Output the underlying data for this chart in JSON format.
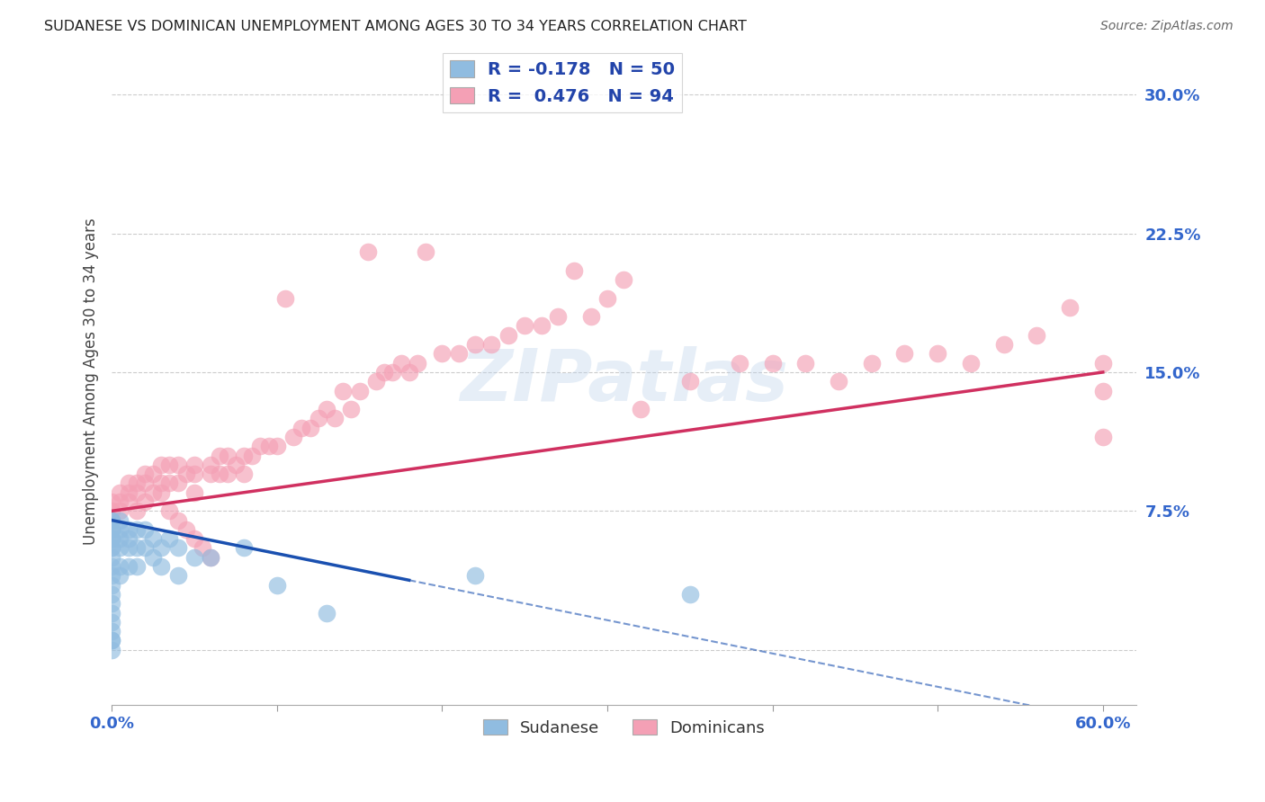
{
  "title": "SUDANESE VS DOMINICAN UNEMPLOYMENT AMONG AGES 30 TO 34 YEARS CORRELATION CHART",
  "source": "Source: ZipAtlas.com",
  "ylabel": "Unemployment Among Ages 30 to 34 years",
  "xlim": [
    0.0,
    0.62
  ],
  "ylim": [
    -0.03,
    0.32
  ],
  "xticks": [
    0.0,
    0.1,
    0.2,
    0.3,
    0.4,
    0.5,
    0.6
  ],
  "xticklabels": [
    "0.0%",
    "",
    "",
    "",
    "",
    "",
    "60.0%"
  ],
  "yticks": [
    0.0,
    0.075,
    0.15,
    0.225,
    0.3
  ],
  "yticklabels": [
    "",
    "7.5%",
    "15.0%",
    "22.5%",
    "30.0%"
  ],
  "grid_yticks": [
    0.0,
    0.075,
    0.15,
    0.225,
    0.3
  ],
  "sudanese_color": "#90bce0",
  "dominican_color": "#f4a0b5",
  "sudanese_line_color": "#1a50b0",
  "dominican_line_color": "#d03060",
  "watermark": "ZIPatlas",
  "sudanese_x": [
    0.0,
    0.0,
    0.0,
    0.0,
    0.0,
    0.0,
    0.0,
    0.0,
    0.0,
    0.0,
    0.0,
    0.0,
    0.0,
    0.0,
    0.0,
    0.0,
    0.0,
    0.0,
    0.0,
    0.0,
    0.005,
    0.005,
    0.005,
    0.005,
    0.005,
    0.005,
    0.01,
    0.01,
    0.01,
    0.01,
    0.015,
    0.015,
    0.015,
    0.02,
    0.02,
    0.025,
    0.025,
    0.03,
    0.03,
    0.035,
    0.04,
    0.04,
    0.05,
    0.06,
    0.08,
    0.1,
    0.13,
    0.22,
    0.35
  ],
  "sudanese_y": [
    0.07,
    0.07,
    0.065,
    0.065,
    0.06,
    0.06,
    0.055,
    0.055,
    0.05,
    0.045,
    0.04,
    0.035,
    0.03,
    0.025,
    0.02,
    0.015,
    0.01,
    0.005,
    0.005,
    0.0,
    0.07,
    0.065,
    0.06,
    0.055,
    0.045,
    0.04,
    0.065,
    0.06,
    0.055,
    0.045,
    0.065,
    0.055,
    0.045,
    0.065,
    0.055,
    0.06,
    0.05,
    0.055,
    0.045,
    0.06,
    0.055,
    0.04,
    0.05,
    0.05,
    0.055,
    0.035,
    0.02,
    0.04,
    0.03
  ],
  "dominican_x": [
    0.0,
    0.0,
    0.005,
    0.005,
    0.005,
    0.01,
    0.01,
    0.01,
    0.015,
    0.015,
    0.015,
    0.02,
    0.02,
    0.02,
    0.025,
    0.025,
    0.03,
    0.03,
    0.03,
    0.035,
    0.035,
    0.04,
    0.04,
    0.045,
    0.05,
    0.05,
    0.05,
    0.06,
    0.06,
    0.065,
    0.065,
    0.07,
    0.07,
    0.075,
    0.08,
    0.08,
    0.085,
    0.09,
    0.095,
    0.1,
    0.105,
    0.11,
    0.115,
    0.12,
    0.125,
    0.13,
    0.135,
    0.14,
    0.145,
    0.15,
    0.155,
    0.16,
    0.165,
    0.17,
    0.175,
    0.18,
    0.185,
    0.19,
    0.2,
    0.21,
    0.22,
    0.23,
    0.24,
    0.25,
    0.26,
    0.27,
    0.28,
    0.29,
    0.3,
    0.31,
    0.32,
    0.35,
    0.38,
    0.4,
    0.42,
    0.44,
    0.46,
    0.48,
    0.5,
    0.52,
    0.54,
    0.56,
    0.58,
    0.6,
    0.6,
    0.6,
    0.035,
    0.04,
    0.045,
    0.05,
    0.055,
    0.06
  ],
  "dominican_y": [
    0.08,
    0.075,
    0.085,
    0.08,
    0.075,
    0.09,
    0.085,
    0.08,
    0.09,
    0.085,
    0.075,
    0.095,
    0.09,
    0.08,
    0.095,
    0.085,
    0.1,
    0.09,
    0.085,
    0.1,
    0.09,
    0.1,
    0.09,
    0.095,
    0.1,
    0.095,
    0.085,
    0.1,
    0.095,
    0.105,
    0.095,
    0.105,
    0.095,
    0.1,
    0.105,
    0.095,
    0.105,
    0.11,
    0.11,
    0.11,
    0.19,
    0.115,
    0.12,
    0.12,
    0.125,
    0.13,
    0.125,
    0.14,
    0.13,
    0.14,
    0.215,
    0.145,
    0.15,
    0.15,
    0.155,
    0.15,
    0.155,
    0.215,
    0.16,
    0.16,
    0.165,
    0.165,
    0.17,
    0.175,
    0.175,
    0.18,
    0.205,
    0.18,
    0.19,
    0.2,
    0.13,
    0.145,
    0.155,
    0.155,
    0.155,
    0.145,
    0.155,
    0.16,
    0.16,
    0.155,
    0.165,
    0.17,
    0.185,
    0.155,
    0.14,
    0.115,
    0.075,
    0.07,
    0.065,
    0.06,
    0.055,
    0.05
  ]
}
